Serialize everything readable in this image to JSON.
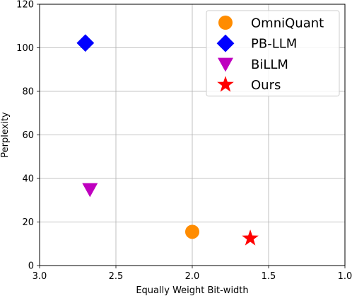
{
  "chart_data": {
    "type": "scatter",
    "xlabel": "Equally Weight Bit-width",
    "ylabel": "Perplexity",
    "xlim": [
      3.0,
      1.0
    ],
    "ylim": [
      0,
      120
    ],
    "x_inverted": true,
    "xticks": [
      3.0,
      2.5,
      2.0,
      1.5,
      1.0
    ],
    "xtick_labels": [
      "3.0",
      "2.5",
      "2.0",
      "1.5",
      "1.0"
    ],
    "yticks": [
      0,
      20,
      40,
      60,
      80,
      100,
      120
    ],
    "ytick_labels": [
      "0",
      "20",
      "40",
      "60",
      "80",
      "100",
      "120"
    ],
    "grid": true,
    "legend_position": "top-right",
    "series": [
      {
        "name": "OmniQuant",
        "marker": "circle",
        "color": "#ff8c00",
        "points": [
          {
            "x": 2.0,
            "y": 15.5
          }
        ]
      },
      {
        "name": "PB-LLM",
        "marker": "diamond",
        "color": "#0000ff",
        "points": [
          {
            "x": 2.7,
            "y": 102.2
          }
        ]
      },
      {
        "name": "BiLLM",
        "marker": "triangle-down",
        "color": "#bf00bf",
        "points": [
          {
            "x": 2.67,
            "y": 35.0
          }
        ]
      },
      {
        "name": "Ours",
        "marker": "star",
        "color": "#ff0000",
        "points": [
          {
            "x": 1.62,
            "y": 12.5
          }
        ]
      }
    ]
  }
}
